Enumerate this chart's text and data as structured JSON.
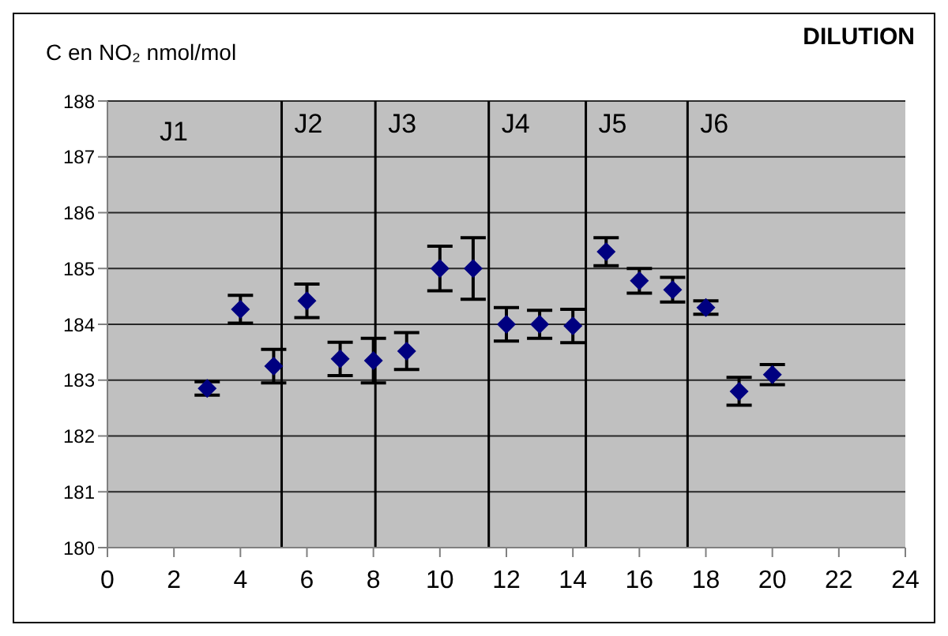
{
  "chart_data": {
    "type": "scatter",
    "title": "DILUTION",
    "ylabel": "C en NO₂ nmol/mol",
    "x": [
      3,
      4,
      5,
      6,
      7,
      8,
      9,
      10,
      11,
      12,
      13,
      14,
      15,
      16,
      17,
      18,
      19,
      20
    ],
    "series": [
      {
        "color": "#000080",
        "values": [
          182.85,
          184.27,
          183.25,
          184.42,
          183.38,
          183.35,
          183.52,
          185.0,
          185.0,
          184.0,
          184.0,
          183.97,
          185.3,
          184.78,
          184.62,
          184.3,
          182.8,
          183.1
        ],
        "errors": [
          0.12,
          0.25,
          0.3,
          0.3,
          0.3,
          0.4,
          0.33,
          0.4,
          0.55,
          0.3,
          0.25,
          0.3,
          0.25,
          0.22,
          0.22,
          0.12,
          0.25,
          0.18
        ]
      }
    ],
    "marker": "diamond",
    "xlim": [
      0,
      24
    ],
    "xticks": [
      0,
      2,
      4,
      6,
      8,
      10,
      12,
      14,
      16,
      18,
      20,
      22,
      24
    ],
    "ylim": [
      180,
      188
    ],
    "yticks": [
      180,
      181,
      182,
      183,
      184,
      185,
      186,
      187,
      188
    ],
    "grid": "y",
    "legend": false,
    "ref_lines": [
      {
        "axis": "x",
        "value": 5.24,
        "color": "#000000",
        "label": "J2"
      },
      {
        "axis": "x",
        "value": 8.06,
        "color": "#000000",
        "label": "J3"
      },
      {
        "axis": "x",
        "value": 11.47,
        "color": "#000000",
        "label": "J4"
      },
      {
        "axis": "x",
        "value": 14.39,
        "color": "#000000",
        "label": "J5"
      },
      {
        "axis": "x",
        "value": 17.45,
        "color": "#000000",
        "label": "J6"
      }
    ],
    "annotations": [
      "J1"
    ]
  }
}
